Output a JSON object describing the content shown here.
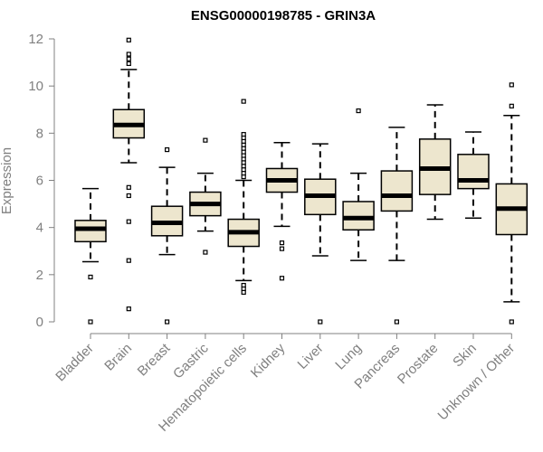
{
  "chart_data": {
    "type": "boxplot",
    "title": "ENSG00000198785 - GRIN3A",
    "xlabel": "",
    "ylabel": "Expression",
    "ylim": [
      0,
      12
    ],
    "yticks": [
      0,
      2,
      4,
      6,
      8,
      10,
      12
    ],
    "grid": false,
    "colors": {
      "box_fill": "#ede6ce",
      "box_stroke": "#000000",
      "median": "#000000",
      "axis": "#808080",
      "outlier": "#000000"
    },
    "categories": [
      "Bladder",
      "Brain",
      "Breast",
      "Gastric",
      "Hematopoietic cells",
      "Kidney",
      "Liver",
      "Lung",
      "Pancreas",
      "Prostate",
      "Skin",
      "Unknown / Other"
    ],
    "boxes": [
      {
        "category": "Bladder",
        "whisker_low": 2.55,
        "q1": 3.4,
        "median": 3.95,
        "q3": 4.3,
        "whisker_high": 5.65,
        "outliers": [
          1.9,
          0.0
        ]
      },
      {
        "category": "Brain",
        "whisker_low": 6.75,
        "q1": 7.8,
        "median": 8.35,
        "q3": 9.0,
        "whisker_high": 10.7,
        "outliers": [
          11.95,
          11.35,
          11.15,
          10.95,
          5.7,
          5.35,
          4.25,
          2.6,
          0.55
        ]
      },
      {
        "category": "Breast",
        "whisker_low": 2.85,
        "q1": 3.65,
        "median": 4.2,
        "q3": 4.9,
        "whisker_high": 6.55,
        "outliers": [
          7.3,
          0.0
        ]
      },
      {
        "category": "Gastric",
        "whisker_low": 3.85,
        "q1": 4.5,
        "median": 5.0,
        "q3": 5.5,
        "whisker_high": 6.3,
        "outliers": [
          7.7,
          2.95
        ]
      },
      {
        "category": "Hematopoietic cells",
        "whisker_low": 1.75,
        "q1": 3.2,
        "median": 3.8,
        "q3": 4.35,
        "whisker_high": 6.0,
        "outliers": [
          9.35,
          7.95,
          7.8,
          7.65,
          7.5,
          7.35,
          7.2,
          7.05,
          6.9,
          6.75,
          6.6,
          6.45,
          6.3,
          6.15,
          1.55,
          1.4,
          1.25
        ]
      },
      {
        "category": "Kidney",
        "whisker_low": 4.05,
        "q1": 5.5,
        "median": 6.0,
        "q3": 6.5,
        "whisker_high": 7.6,
        "outliers": [
          3.35,
          3.1,
          1.85
        ]
      },
      {
        "category": "Liver",
        "whisker_low": 2.8,
        "q1": 4.55,
        "median": 5.35,
        "q3": 6.05,
        "whisker_high": 7.55,
        "outliers": [
          0.0
        ]
      },
      {
        "category": "Lung",
        "whisker_low": 2.6,
        "q1": 3.9,
        "median": 4.4,
        "q3": 5.1,
        "whisker_high": 6.3,
        "outliers": [
          8.95
        ]
      },
      {
        "category": "Pancreas",
        "whisker_low": 2.6,
        "q1": 4.7,
        "median": 5.35,
        "q3": 6.4,
        "whisker_high": 8.25,
        "outliers": [
          0.0
        ]
      },
      {
        "category": "Prostate",
        "whisker_low": 4.35,
        "q1": 5.4,
        "median": 6.5,
        "q3": 7.75,
        "whisker_high": 9.2,
        "outliers": []
      },
      {
        "category": "Skin",
        "whisker_low": 4.4,
        "q1": 5.65,
        "median": 6.0,
        "q3": 7.1,
        "whisker_high": 8.05,
        "outliers": []
      },
      {
        "category": "Unknown / Other",
        "whisker_low": 0.85,
        "q1": 3.7,
        "median": 4.8,
        "q3": 5.85,
        "whisker_high": 8.75,
        "outliers": [
          10.05,
          9.15,
          0.0
        ]
      }
    ]
  }
}
